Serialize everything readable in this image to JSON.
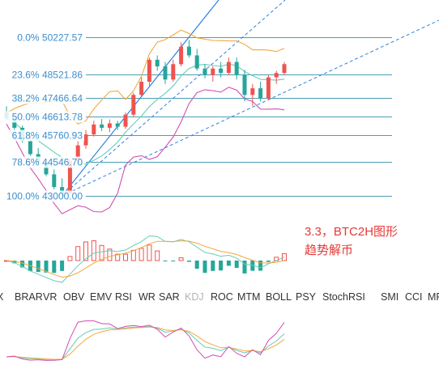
{
  "chart_data": {
    "type": "candlestick",
    "fib_levels": [
      {
        "label": "0.0% 50227.57",
        "value": 50227.57
      },
      {
        "label": "23.6% 48521.86",
        "value": 48521.86
      },
      {
        "label": "38.2% 47466.64",
        "value": 47466.64
      },
      {
        "label": "50.0% 46613.78",
        "value": 46613.78
      },
      {
        "label": "61.8% 45760.93",
        "value": 45760.93
      },
      {
        "label": "78.6% 44546.70",
        "value": 44546.7
      },
      {
        "label": "100.0% 43000.00",
        "value": 43000.0
      }
    ],
    "candles": [
      {
        "o": 46820,
        "h": 47080,
        "l": 46450,
        "c": 46520
      },
      {
        "o": 46520,
        "h": 46750,
        "l": 45950,
        "c": 46100
      },
      {
        "o": 46100,
        "h": 46200,
        "l": 45420,
        "c": 45500
      },
      {
        "o": 45500,
        "h": 45620,
        "l": 44820,
        "c": 44900
      },
      {
        "o": 44900,
        "h": 45180,
        "l": 44380,
        "c": 44520
      },
      {
        "o": 44520,
        "h": 44700,
        "l": 43900,
        "c": 43980
      },
      {
        "o": 43980,
        "h": 44200,
        "l": 43300,
        "c": 43400
      },
      {
        "o": 43400,
        "h": 43800,
        "l": 42950,
        "c": 43100
      },
      {
        "o": 43100,
        "h": 44700,
        "l": 43050,
        "c": 44600
      },
      {
        "o": 44600,
        "h": 45500,
        "l": 44400,
        "c": 45300
      },
      {
        "o": 45300,
        "h": 46000,
        "l": 45150,
        "c": 45800
      },
      {
        "o": 45800,
        "h": 46420,
        "l": 45700,
        "c": 46250
      },
      {
        "o": 46250,
        "h": 46500,
        "l": 45950,
        "c": 46100
      },
      {
        "o": 46100,
        "h": 46480,
        "l": 45900,
        "c": 46300
      },
      {
        "o": 46300,
        "h": 46420,
        "l": 46000,
        "c": 46150
      },
      {
        "o": 46150,
        "h": 46800,
        "l": 46050,
        "c": 46700
      },
      {
        "o": 46700,
        "h": 47700,
        "l": 46600,
        "c": 47600
      },
      {
        "o": 47600,
        "h": 48400,
        "l": 47500,
        "c": 48200
      },
      {
        "o": 48200,
        "h": 49300,
        "l": 48000,
        "c": 49200
      },
      {
        "o": 49200,
        "h": 49400,
        "l": 48700,
        "c": 48900
      },
      {
        "o": 48900,
        "h": 49100,
        "l": 48100,
        "c": 48300
      },
      {
        "o": 48300,
        "h": 49200,
        "l": 48200,
        "c": 49000
      },
      {
        "o": 49000,
        "h": 50000,
        "l": 48900,
        "c": 49800
      },
      {
        "o": 49800,
        "h": 50100,
        "l": 49300,
        "c": 49400
      },
      {
        "o": 49400,
        "h": 49700,
        "l": 48700,
        "c": 48800
      },
      {
        "o": 48800,
        "h": 49000,
        "l": 48350,
        "c": 48500
      },
      {
        "o": 48500,
        "h": 48900,
        "l": 48200,
        "c": 48800
      },
      {
        "o": 48800,
        "h": 49100,
        "l": 48400,
        "c": 48600
      },
      {
        "o": 48600,
        "h": 49300,
        "l": 48500,
        "c": 49100
      },
      {
        "o": 49100,
        "h": 49300,
        "l": 48300,
        "c": 48500
      },
      {
        "o": 48500,
        "h": 48750,
        "l": 47300,
        "c": 47600
      },
      {
        "o": 47600,
        "h": 48100,
        "l": 47100,
        "c": 47900
      },
      {
        "o": 47900,
        "h": 48200,
        "l": 47300,
        "c": 47450
      },
      {
        "o": 47450,
        "h": 48500,
        "l": 47350,
        "c": 48400
      },
      {
        "o": 48400,
        "h": 48700,
        "l": 48100,
        "c": 48600
      },
      {
        "o": 48600,
        "h": 49100,
        "l": 48500,
        "c": 49000
      }
    ],
    "colors": {
      "up": "#ef5350",
      "down": "#26a69a",
      "fib": "#4a9fb5",
      "upper_band": "#f2a93b",
      "mid_band": "#66cdb8",
      "lower_band": "#d34fb1",
      "trend": "#2e82e0"
    }
  },
  "annotation": {
    "line1": "3.3，BTC2H图形",
    "line2": "趋势解币"
  },
  "indicator_tabs": [
    "X",
    "BRAR",
    "VR",
    "OBV",
    "EMV",
    "RSI",
    "WR",
    "SAR",
    "KDJ",
    "ROC",
    "MTM",
    "BOLL",
    "PSY",
    "StochRSI",
    "SMI",
    "CCI",
    "MF"
  ],
  "indicator_tab_active": "KDJ"
}
